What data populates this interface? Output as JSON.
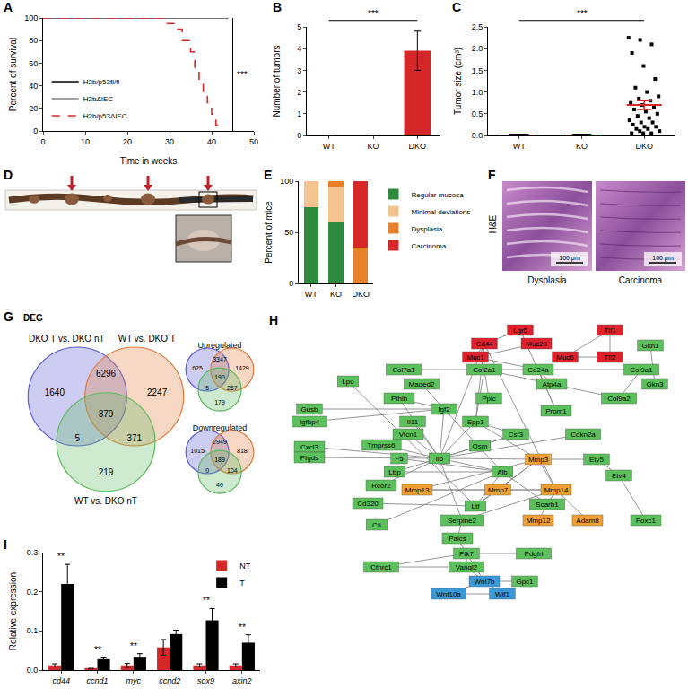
{
  "chart_data": [
    {
      "panel": "A",
      "type": "line",
      "x_label": "Time in weeks",
      "y_label": "Percent of survival",
      "xlim": [
        0,
        50
      ],
      "xticks": [
        0,
        10,
        20,
        30,
        40,
        50
      ],
      "ylim": [
        0,
        100
      ],
      "yticks": [
        0,
        20,
        40,
        60,
        80,
        100
      ],
      "legend": "lower left",
      "series": [
        {
          "name": "H2b/p53fl/fl",
          "color": "#000000",
          "line_style": "solid",
          "x": [
            0,
            44
          ],
          "values": [
            100,
            100
          ]
        },
        {
          "name": "H2bΔIEC",
          "color": "#808080",
          "line_style": "solid",
          "x": [
            0,
            44
          ],
          "values": [
            100,
            100
          ]
        },
        {
          "name": "H2b/p53ΔIEC",
          "color": "#d62728",
          "line_style": "dashed",
          "x": [
            0,
            29,
            31,
            33,
            35,
            36,
            37,
            38,
            39,
            40,
            41,
            42
          ],
          "values": [
            100,
            95,
            90,
            80,
            70,
            55,
            45,
            35,
            25,
            15,
            5,
            0
          ]
        }
      ],
      "significance": {
        "x": 45,
        "text": "***"
      }
    },
    {
      "panel": "B",
      "type": "bar",
      "y_label": "Number of tumors",
      "categories": [
        "WT",
        "KO",
        "DKO"
      ],
      "values": [
        0,
        0,
        3.9
      ],
      "errors": [
        0,
        0,
        0.9
      ],
      "color": "#d62728",
      "ylim": [
        0,
        5
      ],
      "yticks": [
        0,
        1,
        2,
        3,
        4,
        5
      ],
      "significance": {
        "from": "WT",
        "to": "DKO",
        "text": "***"
      }
    },
    {
      "panel": "C",
      "type": "scatter",
      "y_label": "Tumor size (cm³)",
      "categories": [
        "WT",
        "KO",
        "DKO"
      ],
      "points": [
        [
          0,
          0,
          0,
          0,
          0,
          0
        ],
        [
          0,
          0,
          0,
          0,
          0,
          0
        ],
        [
          2.25,
          2.2,
          2.1,
          1.9,
          1.6,
          1.3,
          1.1,
          1.0,
          0.9,
          0.85,
          0.8,
          0.75,
          0.7,
          0.65,
          0.6,
          0.55,
          0.5,
          0.45,
          0.4,
          0.35,
          0.3,
          0.3,
          0.25,
          0.2,
          0.2,
          0.15,
          0.15,
          0.1,
          0.1,
          0.05,
          0.05,
          0.05
        ]
      ],
      "means": [
        0,
        0,
        0.7
      ],
      "errors": [
        0,
        0,
        0.1
      ],
      "color": "#000000",
      "marker": "square",
      "ylim": [
        0,
        2.5
      ],
      "yticks": [
        {
          "value": 0,
          "label": "0.0"
        },
        0.5,
        {
          "value": 1,
          "label": "1.0"
        },
        1.5,
        {
          "value": 2,
          "label": "2.0"
        },
        2.5
      ],
      "significance": {
        "from": "WT",
        "to": "DKO",
        "text": "***"
      }
    },
    {
      "panel": "E",
      "type": "bar",
      "stacked": true,
      "y_label": "Percent of mice",
      "categories": [
        "WT",
        "KO",
        "DKO"
      ],
      "ylim": [
        0,
        100
      ],
      "yticks": [
        0,
        50,
        100
      ],
      "legend": "right",
      "series": [
        {
          "name": "Regular mucosa",
          "color": "#2e8b3e",
          "values": [
            75,
            60,
            0
          ]
        },
        {
          "name": "Minimal deviations",
          "color": "#f3c48f",
          "values": [
            25,
            35,
            0
          ]
        },
        {
          "name": "Dysplasia",
          "color": "#e8822a",
          "values": [
            0,
            5,
            35
          ]
        },
        {
          "name": "Carcinoma",
          "color": "#d62828",
          "values": [
            0,
            0,
            65
          ]
        }
      ]
    },
    {
      "panel": "I",
      "type": "bar",
      "y_label": "Relative expression",
      "categories": [
        "cd44",
        "ccnd1",
        "myc",
        "ccnd2",
        "sox9",
        "axin2"
      ],
      "ylim": [
        0,
        0.3
      ],
      "yticks": [
        {
          "value": 0,
          "label": "0.0"
        },
        0.1,
        0.2,
        0.3
      ],
      "legend": "upper right",
      "series": [
        {
          "name": "NT",
          "color": "#d62728",
          "values": [
            0.012,
            0.005,
            0.012,
            0.058,
            0.012,
            0.012
          ],
          "errors": [
            0.004,
            0.002,
            0.005,
            0.02,
            0.004,
            0.004
          ]
        },
        {
          "name": "T",
          "color": "#000000",
          "values": [
            0.22,
            0.028,
            0.034,
            0.092,
            0.127,
            0.07
          ],
          "errors": [
            0.05,
            0.005,
            0.008,
            0.01,
            0.03,
            0.02
          ]
        }
      ],
      "significance": [
        "**",
        "**",
        "**",
        null,
        "**",
        "**"
      ]
    }
  ],
  "panel_D": {
    "panel": "D"
  },
  "panel_F": {
    "panel": "F",
    "stain": "H&E",
    "scale_bar": "100 μm",
    "images": [
      "Dysplasia",
      "Carcinoma"
    ]
  },
  "panel_G": {
    "panel": "G",
    "title": "DEG",
    "sets": [
      {
        "name": "DKO T vs. DKO nT",
        "color": "#5b5bd6"
      },
      {
        "name": "WT vs. DKO T",
        "color": "#e07a3a"
      },
      {
        "name": "WT vs. DKO nT",
        "color": "#5cb85c"
      }
    ],
    "regions": {
      "a": 1640,
      "ab": 6296,
      "b": 2247,
      "abc": 379,
      "ac": 5,
      "bc": 371,
      "c": 219
    },
    "small": [
      {
        "title": "Upregulated",
        "regions": {
          "a": 625,
          "ab": 3347,
          "b": 1429,
          "abc": 190,
          "ac": 5,
          "bc": 267,
          "c": 179
        }
      },
      {
        "title": "Downregulated",
        "regions": {
          "a": 1015,
          "ab": 2949,
          "b": 818,
          "abc": 189,
          "ac": 0,
          "bc": 104,
          "c": 40
        }
      }
    ]
  },
  "panel_H": {
    "panel": "H",
    "nodes": [
      {
        "label": "Lgr5",
        "color": "#e0202a"
      },
      {
        "label": "Tff1",
        "color": "#e0202a"
      },
      {
        "label": "Cd44",
        "color": "#e0202a"
      },
      {
        "label": "Muc20",
        "color": "#e0202a"
      },
      {
        "label": "Gkn1",
        "color": "#5cc05c"
      },
      {
        "label": "Muc1",
        "color": "#e0202a"
      },
      {
        "label": "Muc6",
        "color": "#e0202a"
      },
      {
        "label": "Tff2",
        "color": "#e0202a"
      },
      {
        "label": "Col7a1",
        "color": "#5cc05c"
      },
      {
        "label": "Col2a1",
        "color": "#5cc05c"
      },
      {
        "label": "Cd24a",
        "color": "#5cc05c"
      },
      {
        "label": "Col9a1",
        "color": "#5cc05c"
      },
      {
        "label": "Lpo",
        "color": "#5cc05c"
      },
      {
        "label": "Gkn3",
        "color": "#5cc05c"
      },
      {
        "label": "Maged2",
        "color": "#5cc05c"
      },
      {
        "label": "Atp4a",
        "color": "#5cc05c"
      },
      {
        "label": "Pthlh",
        "color": "#5cc05c"
      },
      {
        "label": "Ppic",
        "color": "#5cc05c"
      },
      {
        "label": "Col9a2",
        "color": "#5cc05c"
      },
      {
        "label": "Gusb",
        "color": "#5cc05c"
      },
      {
        "label": "Igf2",
        "color": "#5cc05c"
      },
      {
        "label": "Prom1",
        "color": "#5cc05c"
      },
      {
        "label": "Igfbp4",
        "color": "#5cc05c"
      },
      {
        "label": "Il11",
        "color": "#5cc05c"
      },
      {
        "label": "Spp1",
        "color": "#5cc05c"
      },
      {
        "label": "Vtcn1",
        "color": "#5cc05c"
      },
      {
        "label": "Csf3",
        "color": "#5cc05c"
      },
      {
        "label": "Cdkn2a",
        "color": "#5cc05c"
      },
      {
        "label": "Cxcl3",
        "color": "#5cc05c"
      },
      {
        "label": "Tmprss6",
        "color": "#5cc05c"
      },
      {
        "label": "Osm",
        "color": "#5cc05c"
      },
      {
        "label": "Ptgds",
        "color": "#5cc05c"
      },
      {
        "label": "F5",
        "color": "#5cc05c"
      },
      {
        "label": "Il6",
        "color": "#5cc05c"
      },
      {
        "label": "Mmp3",
        "color": "#f0a030"
      },
      {
        "label": "Etv5",
        "color": "#5cc05c"
      },
      {
        "label": "Lbp",
        "color": "#5cc05c"
      },
      {
        "label": "Alb",
        "color": "#5cc05c"
      },
      {
        "label": "Etv4",
        "color": "#5cc05c"
      },
      {
        "label": "Rcor2",
        "color": "#5cc05c"
      },
      {
        "label": "Mmp13",
        "color": "#f0a030"
      },
      {
        "label": "Mmp7",
        "color": "#f0a030"
      },
      {
        "label": "Mmp14",
        "color": "#f0a030"
      },
      {
        "label": "Cd320",
        "color": "#5cc05c"
      },
      {
        "label": "Ltf",
        "color": "#5cc05c"
      },
      {
        "label": "Scarb1",
        "color": "#5cc05c"
      },
      {
        "label": "Cfi",
        "color": "#5cc05c"
      },
      {
        "label": "Serpine2",
        "color": "#5cc05c"
      },
      {
        "label": "Mmp12",
        "color": "#f0a030"
      },
      {
        "label": "Adam8",
        "color": "#f0a030"
      },
      {
        "label": "Foxc1",
        "color": "#5cc05c"
      },
      {
        "label": "Paics",
        "color": "#5cc05c"
      },
      {
        "label": "Ptk7",
        "color": "#5cc05c"
      },
      {
        "label": "Pdgfrl",
        "color": "#5cc05c"
      },
      {
        "label": "Cthrc1",
        "color": "#5cc05c"
      },
      {
        "label": "Vangl2",
        "color": "#5cc05c"
      },
      {
        "label": "Wnt7b",
        "color": "#3a9ad9"
      },
      {
        "label": "Gpc1",
        "color": "#5cc05c"
      },
      {
        "label": "Wnt10a",
        "color": "#3a9ad9"
      },
      {
        "label": "Wif1",
        "color": "#3a9ad9"
      }
    ],
    "edges": [
      [
        "Lgr5",
        "Cd44"
      ],
      [
        "Cd44",
        "Muc1"
      ],
      [
        "Muc20",
        "Muc1"
      ],
      [
        "Muc6",
        "Tff2"
      ],
      [
        "Tff1",
        "Tff2"
      ],
      [
        "Muc6",
        "Tff1"
      ],
      [
        "Muc1",
        "Cd24a"
      ],
      [
        "Col7a1",
        "Col2a1"
      ],
      [
        "Col2a1",
        "Col9a1"
      ],
      [
        "Col9a1",
        "Col9a2"
      ],
      [
        "Col2a1",
        "Col9a2"
      ],
      [
        "Gkn1",
        "Gkn3"
      ],
      [
        "Cd44",
        "Spp1"
      ],
      [
        "Cd44",
        "Il6"
      ],
      [
        "Cd44",
        "Mmp14"
      ],
      [
        "Prom1",
        "Cd24a"
      ],
      [
        "Prom1",
        "Lgr5"
      ],
      [
        "Il6",
        "Osm"
      ],
      [
        "Il6",
        "Il11"
      ],
      [
        "Il6",
        "Csf3"
      ],
      [
        "Il6",
        "Cxcl3"
      ],
      [
        "Il6",
        "Alb"
      ],
      [
        "Il6",
        "Spp1"
      ],
      [
        "Il6",
        "Igf2"
      ],
      [
        "Il6",
        "Lbp"
      ],
      [
        "Il6",
        "Mmp3"
      ],
      [
        "Il6",
        "Cdkn2a"
      ],
      [
        "Il6",
        "Ptgds"
      ],
      [
        "Il6",
        "Serpine2"
      ],
      [
        "Alb",
        "F5"
      ],
      [
        "Alb",
        "Lbp"
      ],
      [
        "Alb",
        "Ltf"
      ],
      [
        "Alb",
        "Igf2"
      ],
      [
        "Alb",
        "Scarb1"
      ],
      [
        "Alb",
        "Cfi"
      ],
      [
        "Spp1",
        "Mmp3"
      ],
      [
        "Spp1",
        "Csf3"
      ],
      [
        "Osm",
        "Csf3"
      ],
      [
        "Mmp3",
        "Mmp7"
      ],
      [
        "Mmp3",
        "Mmp13"
      ],
      [
        "Mmp3",
        "Mmp14"
      ],
      [
        "Mmp7",
        "Mmp14"
      ],
      [
        "Mmp13",
        "Mmp14"
      ],
      [
        "Mmp12",
        "Mmp14"
      ],
      [
        "Mmp7",
        "Ltf"
      ],
      [
        "Mmp14",
        "Adam8"
      ],
      [
        "Mmp3",
        "Etv5"
      ],
      [
        "Etv4",
        "Etv5"
      ],
      [
        "Etv4",
        "Foxc1"
      ],
      [
        "Mmp13",
        "Mmp7"
      ],
      [
        "Mmp3",
        "Ltf"
      ],
      [
        "Serpine2",
        "Mmp14"
      ],
      [
        "Cd320",
        "Ltf"
      ],
      [
        "Igf2",
        "Igfbp4"
      ],
      [
        "Igf2",
        "Pthlh"
      ],
      [
        "Pthlh",
        "Il6"
      ],
      [
        "Maged2",
        "Igf2"
      ],
      [
        "Ltf",
        "Lpo"
      ],
      [
        "Gusb",
        "Igf2"
      ],
      [
        "Tmprss6",
        "Il6"
      ],
      [
        "Spp1",
        "Col2a1"
      ],
      [
        "Ppic",
        "Col2a1"
      ],
      [
        "Atp4a",
        "Cd24a"
      ],
      [
        "Ptk7",
        "Vangl2"
      ],
      [
        "Vangl2",
        "Wnt7b"
      ],
      [
        "Ptk7",
        "Wnt7b"
      ],
      [
        "Wnt7b",
        "Wnt10a"
      ],
      [
        "Wnt7b",
        "Wif1"
      ],
      [
        "Wnt10a",
        "Wif1"
      ],
      [
        "Gpc1",
        "Wnt7b"
      ],
      [
        "Cthrc1",
        "Vangl2"
      ],
      [
        "Cthrc1",
        "Ptk7"
      ],
      [
        "Paics",
        "Ptk7"
      ],
      [
        "Serpine2",
        "Paics"
      ],
      [
        "Pdgfrl",
        "Ptk7"
      ],
      [
        "Rcor2",
        "Il6"
      ],
      [
        "Vtcn1",
        "Il6"
      ]
    ]
  }
}
